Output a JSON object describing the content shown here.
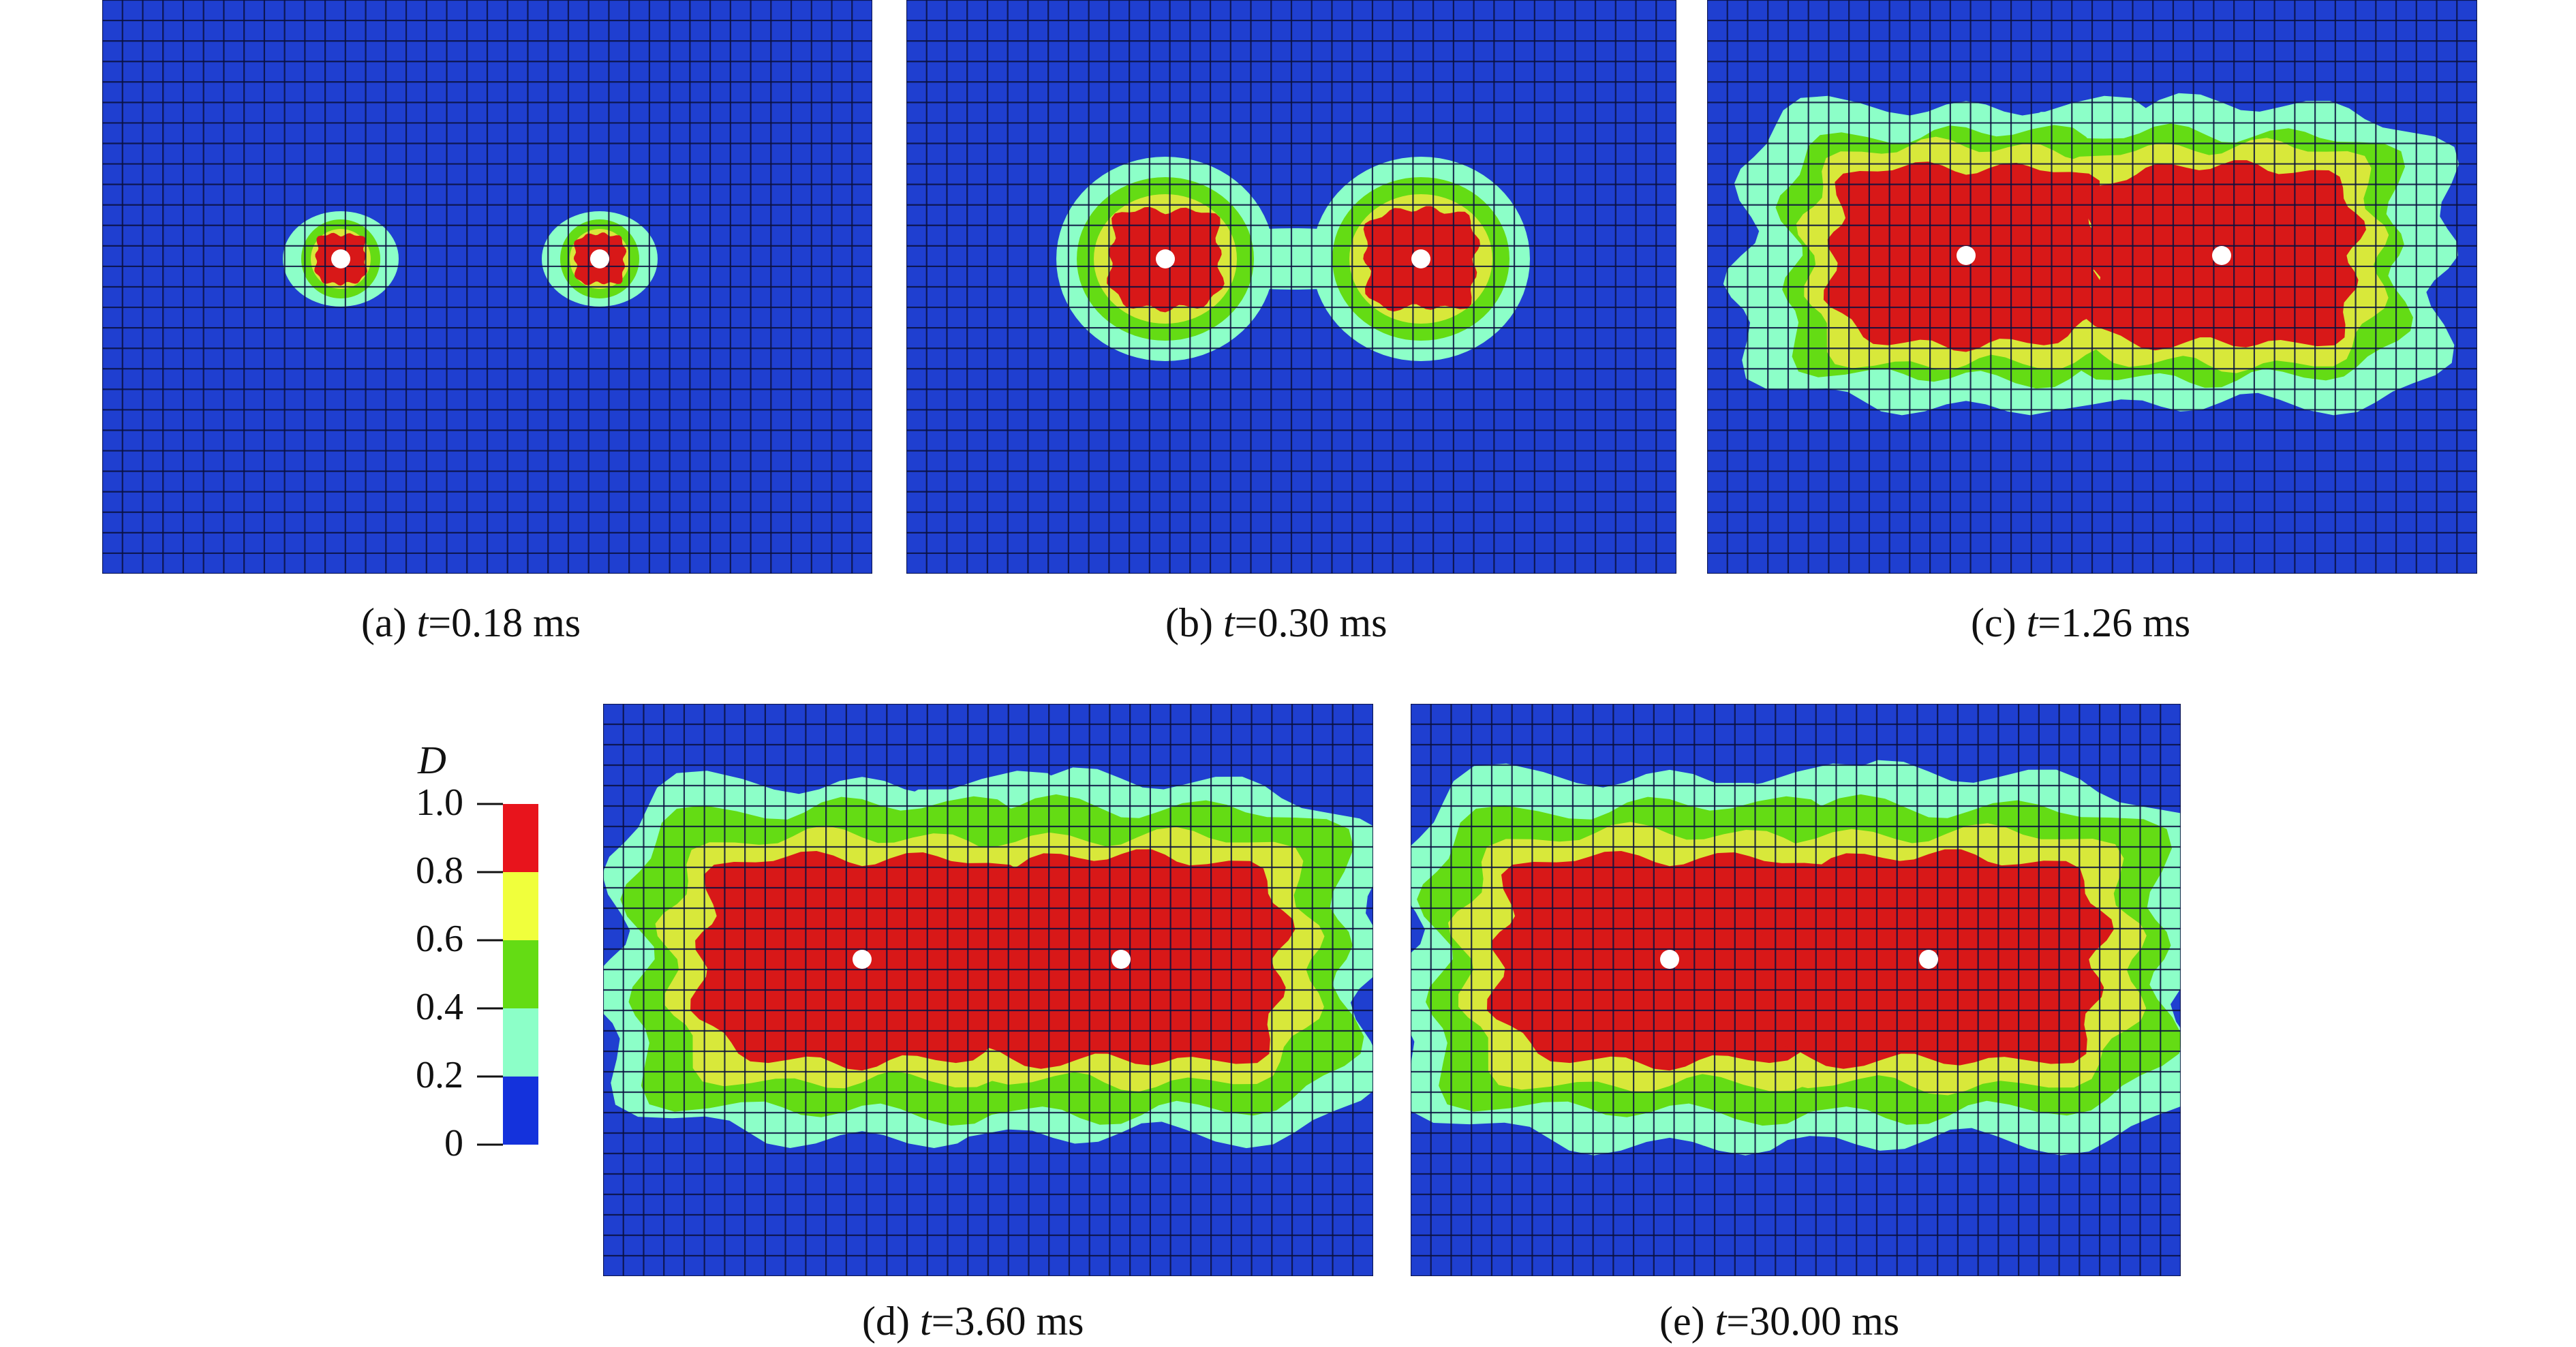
{
  "figure": {
    "panels": [
      {
        "id": "a",
        "prefix": "(a) ",
        "var": "t",
        "rest": "=0.18 ms",
        "stage": 0
      },
      {
        "id": "b",
        "prefix": "(b) ",
        "var": "t",
        "rest": "=0.30 ms",
        "stage": 1
      },
      {
        "id": "c",
        "prefix": "(c) ",
        "var": "t",
        "rest": "=1.26 ms",
        "stage": 2
      },
      {
        "id": "d",
        "prefix": "(d) ",
        "var": "t",
        "rest": "=3.60 ms",
        "stage": 3
      },
      {
        "id": "e",
        "prefix": "(e) ",
        "var": "t",
        "rest": "=30.00 ms",
        "stage": 4
      }
    ],
    "legend": {
      "variable": "D",
      "ticks": [
        "1.0",
        "0.8",
        "0.6",
        "0.4",
        "0.2",
        "0"
      ],
      "bands": [
        {
          "range": [
            0.8,
            1.0
          ],
          "color": "#e8141c"
        },
        {
          "range": [
            0.6,
            0.8
          ],
          "color": "#f0ff3c"
        },
        {
          "range": [
            0.4,
            0.6
          ],
          "color": "#64dc14"
        },
        {
          "range": [
            0.2,
            0.4
          ],
          "color": "#8cffc8"
        },
        {
          "range": [
            0.0,
            0.2
          ],
          "color": "#1432dc"
        }
      ]
    },
    "colors": {
      "background_mesh": "#1f3fd0",
      "mesh_line": "#0a1040",
      "band_1": "#8cffc8",
      "band_2": "#64dc14",
      "band_3": "#d8e83a",
      "band_4": "#d81818",
      "hole": "#ffffff"
    }
  }
}
